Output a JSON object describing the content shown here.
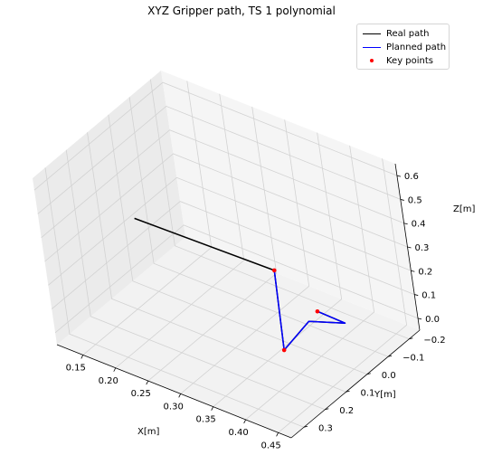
{
  "chart_data": {
    "type": "line3d",
    "title": "XYZ Gripper path, TS 1 polynomial",
    "xlabel": "X[m]",
    "ylabel": "Y[m]",
    "zlabel": "Z[m]",
    "xlim": [
      0.11,
      0.47
    ],
    "ylim": [
      -0.25,
      0.36
    ],
    "zlim": [
      -0.05,
      0.65
    ],
    "x_ticks": [
      0.15,
      0.2,
      0.25,
      0.3,
      0.35,
      0.4,
      0.45
    ],
    "x_tick_labels": [
      "0.15",
      "0.20",
      "0.25",
      "0.30",
      "0.35",
      "0.40",
      "0.45"
    ],
    "y_ticks": [
      -0.2,
      -0.1,
      0.0,
      0.1,
      0.2,
      0.3
    ],
    "y_tick_labels": [
      "−0.2",
      "−0.1",
      "0.0",
      "0.1",
      "0.2",
      "0.3"
    ],
    "z_ticks": [
      0.0,
      0.1,
      0.2,
      0.3,
      0.4,
      0.5,
      0.6
    ],
    "z_tick_labels": [
      "0.0",
      "0.1",
      "0.2",
      "0.3",
      "0.4",
      "0.5",
      "0.6"
    ],
    "grid": true,
    "legend_position": "top-right",
    "series": [
      {
        "name": "Real path",
        "color": "#000000",
        "kind": "line",
        "points": [
          [
            0.12,
            -0.02,
            0.21
          ],
          [
            0.44,
            0.25,
            0.54
          ],
          [
            0.41,
            0.18,
            0.12
          ],
          [
            0.38,
            -0.02,
            0.06
          ],
          [
            0.4,
            -0.12,
            0.0
          ],
          [
            0.35,
            -0.14,
            -0.02
          ]
        ]
      },
      {
        "name": "Planned path",
        "color": "#0000ff",
        "kind": "line",
        "points": [
          [
            0.44,
            0.25,
            0.54
          ],
          [
            0.41,
            0.18,
            0.12
          ],
          [
            0.38,
            -0.02,
            0.06
          ],
          [
            0.4,
            -0.12,
            0.0
          ],
          [
            0.35,
            -0.14,
            -0.02
          ]
        ]
      },
      {
        "name": "Key points",
        "color": "#ff0000",
        "kind": "scatter",
        "points": [
          [
            0.44,
            0.25,
            0.54
          ],
          [
            0.41,
            0.18,
            0.12
          ],
          [
            0.35,
            -0.14,
            -0.02
          ]
        ]
      }
    ]
  }
}
